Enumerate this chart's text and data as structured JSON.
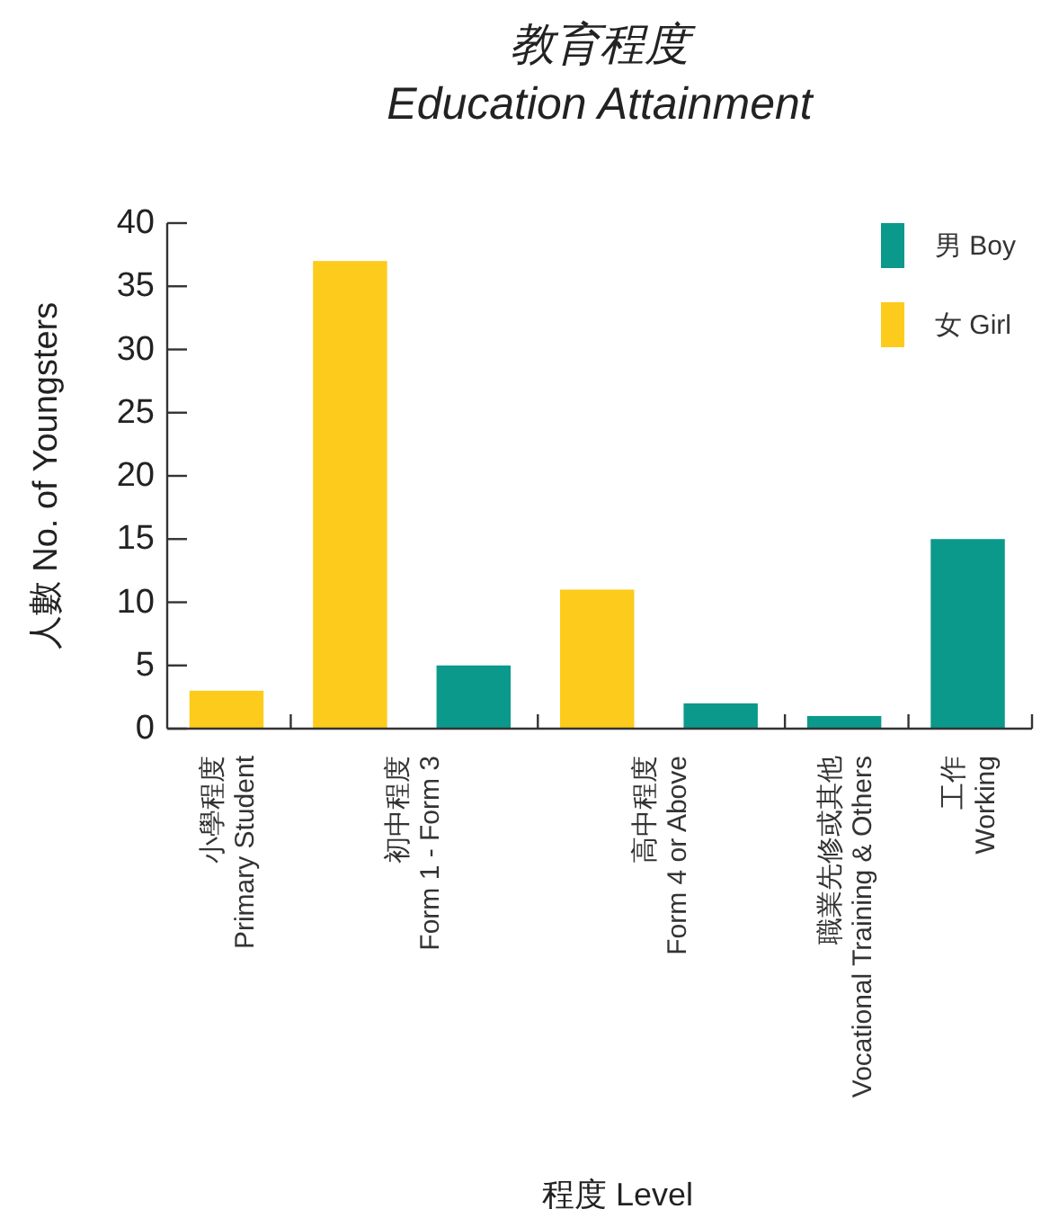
{
  "chart_data": {
    "type": "bar",
    "title": "教育程度\nEducation Attainment",
    "xlabel": "程度 Level",
    "ylabel": "人數 No. of Youngsters",
    "categories": [
      "小學程度\nPrimary Student",
      "初中程度\nForm 1 - Form 3",
      "高中程度\nForm 4 or Above",
      "職業先修或其他\nVocational Training & Others",
      "工作\nWorking"
    ],
    "series": [
      {
        "name": "女 Girl",
        "color": "#fdcb1b",
        "values": [
          3,
          37,
          11,
          null,
          null
        ]
      },
      {
        "name": "男 Boy",
        "color": "#0b998c",
        "values": [
          null,
          5,
          2,
          1,
          15
        ]
      }
    ],
    "ylim": [
      0,
      40
    ],
    "yticks": [
      0,
      5,
      10,
      15,
      20,
      25,
      30,
      35,
      40
    ],
    "legend": "top right"
  }
}
